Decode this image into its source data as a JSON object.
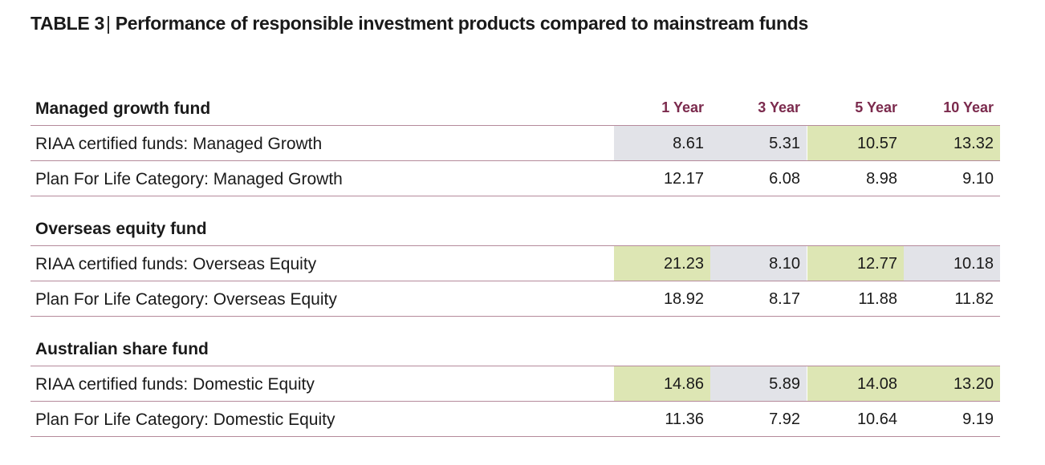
{
  "title": {
    "label": "TABLE 3",
    "separator": "|",
    "text": "Performance of responsible investment products compared to mainstream funds"
  },
  "columns": [
    "1 Year",
    "3 Year",
    "5 Year",
    "10 Year"
  ],
  "colors": {
    "header_text": "#7b2a4d",
    "rule": "#b58a9b",
    "highlight_green": "#dde6b4",
    "highlight_grey": "#e2e3e8"
  },
  "groups": [
    {
      "name": "Managed growth fund",
      "rows": [
        {
          "label": "RIAA certified funds: Managed Growth",
          "values": [
            "8.61",
            "5.31",
            "10.57",
            "13.32"
          ],
          "shading": [
            "grey",
            "grey",
            "green",
            "green"
          ]
        },
        {
          "label": "Plan For Life Category: Managed Growth",
          "values": [
            "12.17",
            "6.08",
            "8.98",
            "9.10"
          ],
          "shading": [
            "none",
            "none",
            "none",
            "none"
          ]
        }
      ]
    },
    {
      "name": "Overseas equity fund",
      "rows": [
        {
          "label": "RIAA certified funds: Overseas Equity",
          "values": [
            "21.23",
            "8.10",
            "12.77",
            "10.18"
          ],
          "shading": [
            "green",
            "grey",
            "green",
            "grey"
          ]
        },
        {
          "label": "Plan For Life Category: Overseas Equity",
          "values": [
            "18.92",
            "8.17",
            "11.88",
            "11.82"
          ],
          "shading": [
            "none",
            "none",
            "none",
            "none"
          ]
        }
      ]
    },
    {
      "name": "Australian share fund",
      "rows": [
        {
          "label": "RIAA certified funds: Domestic Equity",
          "values": [
            "14.86",
            "5.89",
            "14.08",
            "13.20"
          ],
          "shading": [
            "green",
            "grey",
            "green",
            "green"
          ]
        },
        {
          "label": "Plan For Life Category: Domestic Equity",
          "values": [
            "11.36",
            "7.92",
            "10.64",
            "9.19"
          ],
          "shading": [
            "none",
            "none",
            "none",
            "none"
          ]
        }
      ]
    }
  ]
}
